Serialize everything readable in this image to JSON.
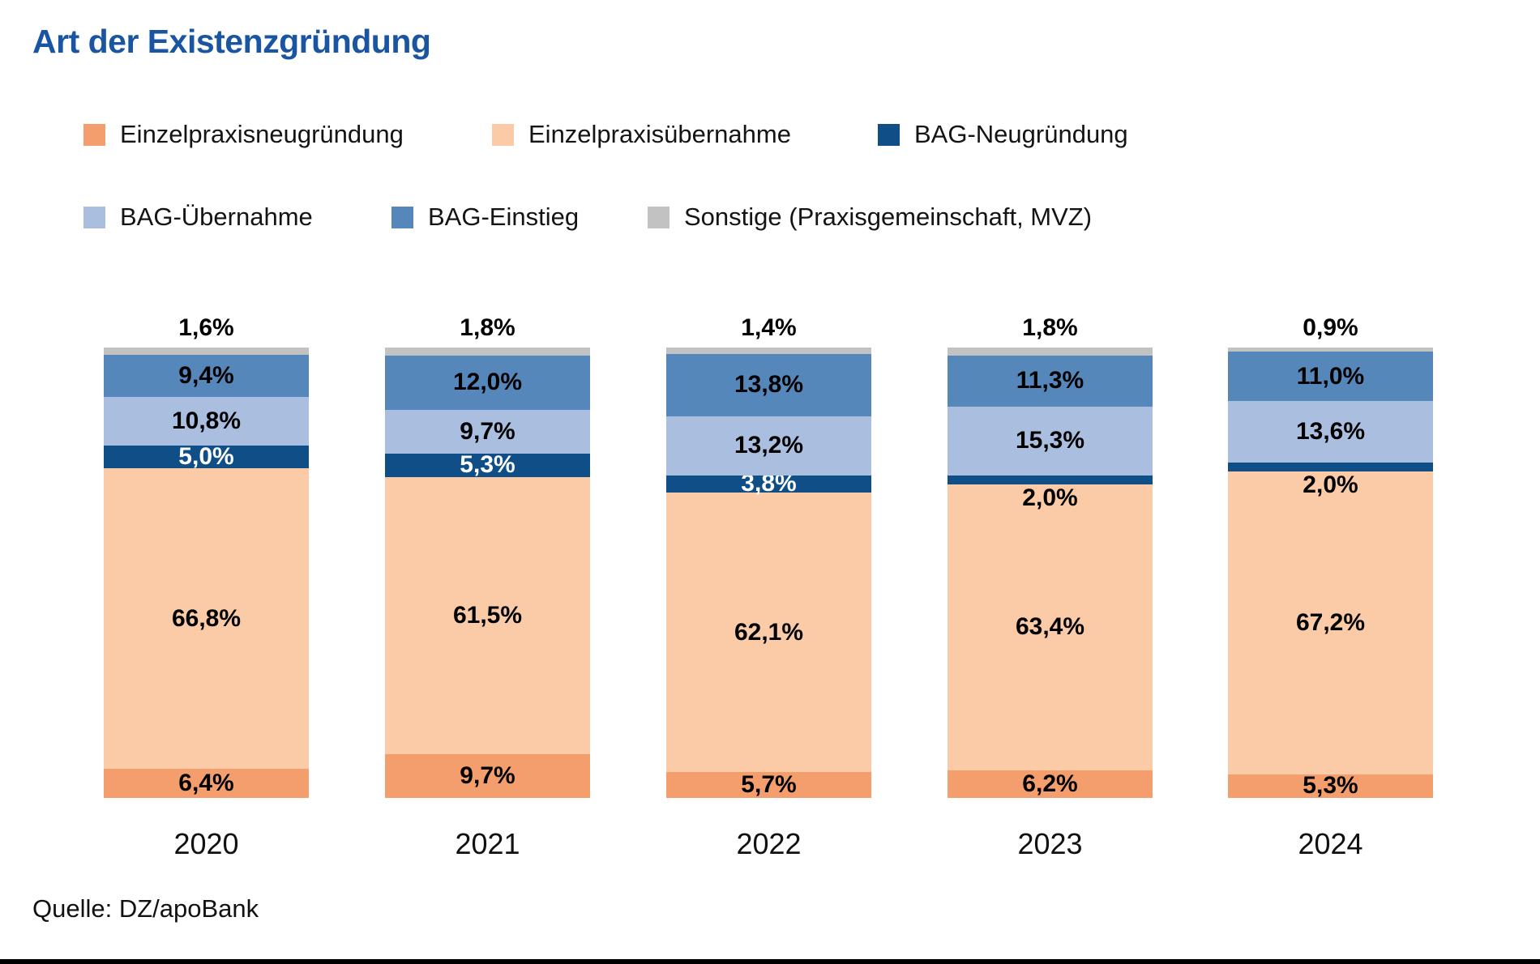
{
  "title": "Art der Existenzgründung",
  "source": "Quelle: DZ/apoBank",
  "colors": {
    "orange": "#F49E6E",
    "peach": "#FACBA6",
    "darkblue": "#0F4E87",
    "lightblue": "#AABFDF",
    "medblue": "#5587BA",
    "gray": "#C2C2C3",
    "title": "#1A55A2"
  },
  "legend": {
    "rows": [
      [
        {
          "label": "Einzelpraxisneugründung",
          "color": "orange"
        },
        {
          "label": "Einzelpraxisübernahme",
          "color": "peach"
        },
        {
          "label": "BAG-Neugründung",
          "color": "darkblue"
        }
      ],
      [
        {
          "label": "BAG-Übernahme",
          "color": "lightblue"
        },
        {
          "label": "BAG-Einstieg",
          "color": "medblue"
        },
        {
          "label": "Sonstige (Praxisgemeinschaft, MVZ)",
          "color": "gray"
        }
      ]
    ]
  },
  "chart_data": {
    "type": "bar",
    "stacked": true,
    "unit": "%",
    "title": "Art der Existenzgründung",
    "categories": [
      "2020",
      "2021",
      "2022",
      "2023",
      "2024"
    ],
    "series": [
      {
        "name": "Einzelpraxisneugründung",
        "color": "orange",
        "values": [
          6.4,
          9.7,
          5.7,
          6.2,
          5.3
        ]
      },
      {
        "name": "Einzelpraxisübernahme",
        "color": "peach",
        "values": [
          66.8,
          61.5,
          62.1,
          63.4,
          67.2
        ]
      },
      {
        "name": "BAG-Neugründung",
        "color": "darkblue",
        "values": [
          5.0,
          5.3,
          3.8,
          2.0,
          2.0
        ]
      },
      {
        "name": "BAG-Übernahme",
        "color": "lightblue",
        "values": [
          10.8,
          9.7,
          13.2,
          15.3,
          13.6
        ]
      },
      {
        "name": "BAG-Einstieg",
        "color": "medblue",
        "values": [
          9.4,
          12.0,
          13.8,
          11.3,
          11.0
        ]
      },
      {
        "name": "Sonstige (Praxisgemeinschaft, MVZ)",
        "color": "gray",
        "values": [
          1.6,
          1.8,
          1.4,
          1.8,
          0.9
        ]
      }
    ],
    "ylim": [
      0,
      100
    ],
    "value_label_format": "comma-decimal-percent",
    "legend_position": "top",
    "grid": false,
    "xlabel": "",
    "ylabel": ""
  }
}
